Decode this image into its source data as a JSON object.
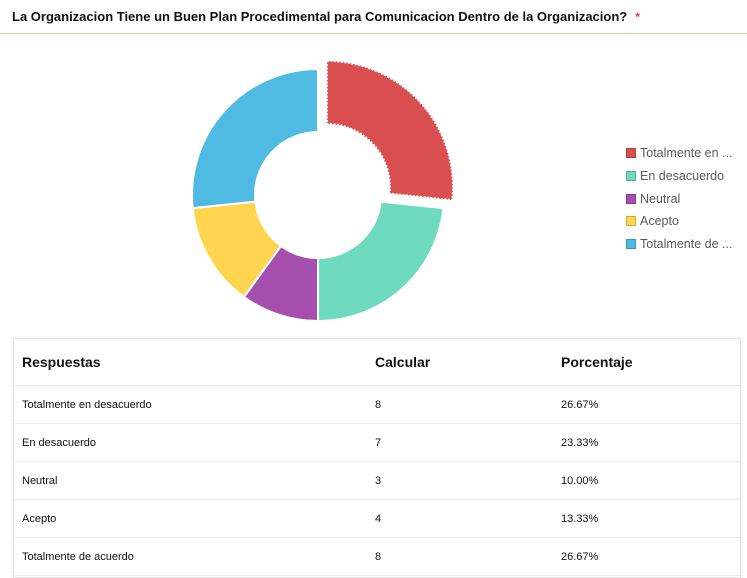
{
  "question": {
    "title": "La Organizacion Tiene un Buen Plan Procedimental para Comunicacion Dentro de la Organizacion?",
    "required_mark": "*"
  },
  "chart_data": {
    "type": "pie",
    "style": "donut",
    "exploded_slice": 0,
    "legend_position": "right",
    "categories": [
      "Totalmente en desacuerdo",
      "En desacuerdo",
      "Neutral",
      "Acepto",
      "Totalmente de acuerdo"
    ],
    "legend_labels": [
      "Totalmente en ...",
      "En desacuerdo",
      "Neutral",
      "Acepto",
      "Totalmente de ..."
    ],
    "values": [
      8,
      7,
      3,
      4,
      8
    ],
    "colors": [
      "#d94f4f",
      "#6edac0",
      "#a64fae",
      "#ffd54f",
      "#4fbbe3"
    ]
  },
  "table": {
    "headers": [
      "Respuestas",
      "Calcular",
      "Porcentaje"
    ],
    "rows": [
      [
        "Totalmente en desacuerdo",
        "8",
        "26.67%"
      ],
      [
        "En desacuerdo",
        "7",
        "23.33%"
      ],
      [
        "Neutral",
        "3",
        "10.00%"
      ],
      [
        "Acepto",
        "4",
        "13.33%"
      ],
      [
        "Totalmente de acuerdo",
        "8",
        "26.67%"
      ]
    ]
  }
}
